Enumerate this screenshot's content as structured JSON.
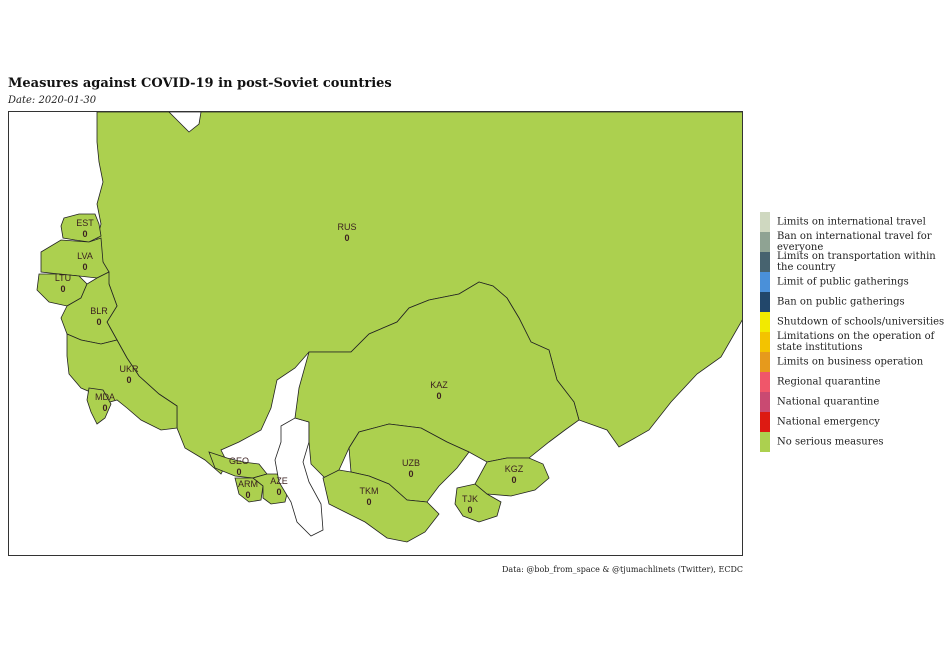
{
  "map": {
    "title": "Measures against COVID-19 in post-Soviet countries",
    "subtitle": "Date: 2020-01-30",
    "fill_color": "#acd04f",
    "countries": [
      {
        "code": "RUS",
        "value": "0"
      },
      {
        "code": "EST",
        "value": "0"
      },
      {
        "code": "LVA",
        "value": "0"
      },
      {
        "code": "LTU",
        "value": "0"
      },
      {
        "code": "BLR",
        "value": "0"
      },
      {
        "code": "UKR",
        "value": "0"
      },
      {
        "code": "MDA",
        "value": "0"
      },
      {
        "code": "GEO",
        "value": "0"
      },
      {
        "code": "ARM",
        "value": "0"
      },
      {
        "code": "AZE",
        "value": "0"
      },
      {
        "code": "KAZ",
        "value": "0"
      },
      {
        "code": "UZB",
        "value": "0"
      },
      {
        "code": "TKM",
        "value": "0"
      },
      {
        "code": "KGZ",
        "value": "0"
      },
      {
        "code": "TJK",
        "value": "0"
      }
    ]
  },
  "legend": {
    "items": [
      {
        "label": "Limits on international travel",
        "color": "#cfd8c0"
      },
      {
        "label": "Ban on international travel for everyone",
        "color": "#8fa393"
      },
      {
        "label": "Limits on transportation within the country",
        "color": "#47636f"
      },
      {
        "label": "Limit of public gatherings",
        "color": "#4a90d9"
      },
      {
        "label": "Ban on public gatherings",
        "color": "#22476b"
      },
      {
        "label": "Shutdown of schools/universities",
        "color": "#f2ea00"
      },
      {
        "label": "Limitations on the operation of state institutions",
        "color": "#f3c300"
      },
      {
        "label": "Limits on business operation",
        "color": "#e69a1c"
      },
      {
        "label": "Regional quarantine",
        "color": "#f0566a"
      },
      {
        "label": "National quarantine",
        "color": "#c94a72"
      },
      {
        "label": "National emergency",
        "color": "#dd1a12"
      },
      {
        "label": "No serious measures",
        "color": "#acd04f"
      }
    ]
  },
  "caption": "Data: @bob_from_space & @tjumachlinets (Twitter), ECDC"
}
